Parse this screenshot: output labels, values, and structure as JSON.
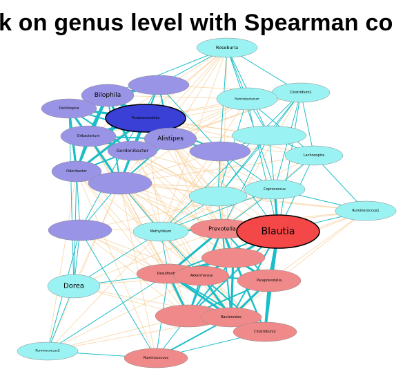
{
  "title": "k on genus level with Spearman co",
  "palette": {
    "edge_positive": "#1bbec8",
    "edge_negative": "#f7d09a",
    "cyan_node": "#9af2f2",
    "purple_node": "#9a94e6",
    "red_node": "#f08a8a",
    "hub_purple": "#3a3fd6",
    "hub_red": "#f44848"
  },
  "nodes": [
    {
      "id": "roseburia",
      "label": "Roseburia",
      "group": "cyan"
    },
    {
      "id": "clostridium1",
      "label": "Clostridium1",
      "group": "cyan"
    },
    {
      "id": "ruminobacterium",
      "label": "Ruminobacterium",
      "group": "cyan"
    },
    {
      "id": "cyan_unlab1",
      "label": "",
      "group": "cyan"
    },
    {
      "id": "lachnospira",
      "label": "Lachnospira",
      "group": "cyan"
    },
    {
      "id": "coprococcus",
      "label": "Coprococcus",
      "group": "cyan"
    },
    {
      "id": "cyan_unlab2",
      "label": "",
      "group": "cyan"
    },
    {
      "id": "ruminococcus1",
      "label": "Ruminococcus1",
      "group": "cyan"
    },
    {
      "id": "methylibium",
      "label": "Methylibium",
      "group": "cyan"
    },
    {
      "id": "dorea",
      "label": "Dorea",
      "group": "cyan"
    },
    {
      "id": "ruminococcus2",
      "label": "Ruminococcus2",
      "group": "cyan"
    },
    {
      "id": "bilophila",
      "label": "Bilophila",
      "group": "purple"
    },
    {
      "id": "purple_top",
      "label": "",
      "group": "purple"
    },
    {
      "id": "oscillospira",
      "label": "Oscillospira",
      "group": "purple"
    },
    {
      "id": "parabacteroides",
      "label": "Parabacteroides",
      "group": "hub_purple"
    },
    {
      "id": "oribacterium",
      "label": "Oribacterium",
      "group": "purple"
    },
    {
      "id": "alistipes",
      "label": "Alistipes",
      "group": "purple"
    },
    {
      "id": "gordonibacter",
      "label": "Gordonibacter",
      "group": "purple"
    },
    {
      "id": "purple_mid",
      "label": "",
      "group": "purple"
    },
    {
      "id": "odoribacter",
      "label": "Odoribacter",
      "group": "purple"
    },
    {
      "id": "purple_low",
      "label": "",
      "group": "purple"
    },
    {
      "id": "purple_left",
      "label": "",
      "group": "purple"
    },
    {
      "id": "prevotella",
      "label": "Prevotella",
      "group": "red"
    },
    {
      "id": "blautia",
      "label": "Blautia",
      "group": "hub_red"
    },
    {
      "id": "red_unlab1",
      "label": "",
      "group": "red"
    },
    {
      "id": "desulfovibrio",
      "label": "Desulfovibrio",
      "group": "red"
    },
    {
      "id": "akkermansia",
      "label": "Akkermansia",
      "group": "red"
    },
    {
      "id": "paraprevotella",
      "label": "Paraprevotella",
      "group": "red"
    },
    {
      "id": "red_unlab2",
      "label": "",
      "group": "red"
    },
    {
      "id": "bacteroides",
      "label": "Bacteroides",
      "group": "red"
    },
    {
      "id": "clostridium2",
      "label": "Clostridium2",
      "group": "red"
    },
    {
      "id": "ruminococcus",
      "label": "Ruminococcus",
      "group": "red"
    }
  ],
  "edges_positive": [
    [
      "bilophila",
      "oscillospira",
      3
    ],
    [
      "bilophila",
      "parabacteroides",
      4
    ],
    [
      "bilophila",
      "oribacterium",
      4
    ],
    [
      "bilophila",
      "alistipes",
      3
    ],
    [
      "bilophila",
      "gordonibacter",
      3
    ],
    [
      "bilophila",
      "odoribacter",
      2
    ],
    [
      "bilophila",
      "purple_top",
      2
    ],
    [
      "bilophila",
      "purple_low",
      2
    ],
    [
      "oscillospira",
      "parabacteroides",
      3
    ],
    [
      "oscillospira",
      "oribacterium",
      3
    ],
    [
      "oscillospira",
      "odoribacter",
      3
    ],
    [
      "oscillospira",
      "gordonibacter",
      2
    ],
    [
      "oscillospira",
      "alistipes",
      2
    ],
    [
      "oscillospira",
      "purple_top",
      2
    ],
    [
      "parabacteroides",
      "oribacterium",
      4
    ],
    [
      "parabacteroides",
      "alistipes",
      4
    ],
    [
      "parabacteroides",
      "gordonibacter",
      4
    ],
    [
      "parabacteroides",
      "odoribacter",
      3
    ],
    [
      "parabacteroides",
      "purple_low",
      3
    ],
    [
      "parabacteroides",
      "purple_top",
      2
    ],
    [
      "parabacteroides",
      "purple_mid",
      2
    ],
    [
      "oribacterium",
      "odoribacter",
      3
    ],
    [
      "oribacterium",
      "gordonibacter",
      3
    ],
    [
      "oribacterium",
      "purple_low",
      3
    ],
    [
      "oribacterium",
      "alistipes",
      2
    ],
    [
      "alistipes",
      "gordonibacter",
      3
    ],
    [
      "alistipes",
      "purple_mid",
      2
    ],
    [
      "alistipes",
      "purple_low",
      2
    ],
    [
      "gordonibacter",
      "purple_low",
      3
    ],
    [
      "gordonibacter",
      "odoribacter",
      2
    ],
    [
      "odoribacter",
      "purple_low",
      3
    ],
    [
      "purple_top",
      "alistipes",
      2
    ],
    [
      "purple_top",
      "purple_mid",
      1
    ],
    [
      "prevotella",
      "blautia",
      3
    ],
    [
      "prevotella",
      "red_unlab1",
      3
    ],
    [
      "prevotella",
      "desulfovibrio",
      3
    ],
    [
      "prevotella",
      "akkermansia",
      2
    ],
    [
      "prevotella",
      "paraprevotella",
      2
    ],
    [
      "prevotella",
      "bacteroides",
      2
    ],
    [
      "prevotella",
      "red_unlab2",
      2
    ],
    [
      "prevotella",
      "clostridium2",
      2
    ],
    [
      "prevotella",
      "methylibium",
      2
    ],
    [
      "blautia",
      "paraprevotella",
      3
    ],
    [
      "blautia",
      "red_unlab1",
      3
    ],
    [
      "blautia",
      "clostridium2",
      3
    ],
    [
      "blautia",
      "bacteroides",
      2
    ],
    [
      "blautia",
      "coprococcus",
      3
    ],
    [
      "blautia",
      "akkermansia",
      2
    ],
    [
      "blautia",
      "desulfovibrio",
      2
    ],
    [
      "blautia",
      "red_unlab2",
      2
    ],
    [
      "blautia",
      "purple_mid",
      1
    ],
    [
      "red_unlab1",
      "desulfovibrio",
      3
    ],
    [
      "red_unlab1",
      "akkermansia",
      3
    ],
    [
      "red_unlab1",
      "paraprevotella",
      3
    ],
    [
      "red_unlab1",
      "bacteroides",
      3
    ],
    [
      "red_unlab1",
      "clostridium2",
      2
    ],
    [
      "red_unlab1",
      "red_unlab2",
      2
    ],
    [
      "desulfovibrio",
      "akkermansia",
      4
    ],
    [
      "desulfovibrio",
      "bacteroides",
      3
    ],
    [
      "desulfovibrio",
      "red_unlab2",
      3
    ],
    [
      "desulfovibrio",
      "clostridium2",
      2
    ],
    [
      "desulfovibrio",
      "paraprevotella",
      2
    ],
    [
      "akkermansia",
      "bacteroides",
      3
    ],
    [
      "akkermansia",
      "red_unlab2",
      2
    ],
    [
      "akkermansia",
      "paraprevotella",
      2
    ],
    [
      "akkermansia",
      "clostridium2",
      2
    ],
    [
      "paraprevotella",
      "bacteroides",
      3
    ],
    [
      "paraprevotella",
      "clostridium2",
      3
    ],
    [
      "paraprevotella",
      "red_unlab2",
      2
    ],
    [
      "bacteroides",
      "clostridium2",
      3
    ],
    [
      "bacteroides",
      "red_unlab2",
      3
    ],
    [
      "bacteroides",
      "ruminococcus",
      2
    ],
    [
      "red_unlab2",
      "clostridium2",
      2
    ],
    [
      "red_unlab2",
      "ruminococcus",
      1
    ],
    [
      "clostridium2",
      "ruminococcus",
      1
    ],
    [
      "desulfovibrio",
      "ruminococcus",
      1
    ],
    [
      "methylibium",
      "desulfovibrio",
      1
    ],
    [
      "methylibium",
      "akkermansia",
      1
    ],
    [
      "roseburia",
      "clostridium1",
      1
    ],
    [
      "roseburia",
      "ruminobacterium",
      1
    ],
    [
      "roseburia",
      "purple_top",
      1
    ],
    [
      "roseburia",
      "purple_mid",
      1
    ],
    [
      "roseburia",
      "cyan_unlab1",
      1
    ],
    [
      "roseburia",
      "coprococcus",
      1
    ],
    [
      "clostridium1",
      "ruminobacterium",
      1
    ],
    [
      "clostridium1",
      "lachnospira",
      1
    ],
    [
      "clostridium1",
      "coprococcus",
      1
    ],
    [
      "clostridium1",
      "cyan_unlab1",
      1
    ],
    [
      "clostridium1",
      "cyan_unlab2",
      1
    ],
    [
      "clostridium1",
      "methylibium",
      1
    ],
    [
      "ruminobacterium",
      "cyan_unlab1",
      1
    ],
    [
      "ruminobacterium",
      "lachnospira",
      1
    ],
    [
      "ruminobacterium",
      "cyan_unlab2",
      1
    ],
    [
      "cyan_unlab1",
      "lachnospira",
      1
    ],
    [
      "cyan_unlab1",
      "coprococcus",
      1
    ],
    [
      "cyan_unlab1",
      "cyan_unlab2",
      1
    ],
    [
      "cyan_unlab1",
      "purple_mid",
      1
    ],
    [
      "cyan_unlab1",
      "prevotella",
      1
    ],
    [
      "lachnospira",
      "coprococcus",
      1
    ],
    [
      "lachnospira",
      "ruminococcus1",
      1
    ],
    [
      "coprococcus",
      "ruminococcus1",
      1
    ],
    [
      "coprococcus",
      "cyan_unlab2",
      1
    ],
    [
      "coprococcus",
      "methylibium",
      1
    ],
    [
      "coprococcus",
      "prevotella",
      1
    ],
    [
      "cyan_unlab2",
      "methylibium",
      1
    ],
    [
      "cyan_unlab2",
      "prevotella",
      1
    ],
    [
      "cyan_unlab2",
      "purple_mid",
      1
    ],
    [
      "methylibium",
      "purple_low",
      1
    ],
    [
      "methylibium",
      "dorea",
      1
    ],
    [
      "methylibium",
      "prevotella",
      1
    ],
    [
      "dorea",
      "purple_left",
      1
    ],
    [
      "dorea",
      "ruminococcus2",
      1
    ],
    [
      "dorea",
      "desulfovibrio",
      1
    ],
    [
      "ruminococcus2",
      "desulfovibrio",
      1
    ],
    [
      "ruminococcus2",
      "purple_left",
      1
    ],
    [
      "ruminococcus2",
      "ruminococcus",
      1
    ],
    [
      "ruminococcus",
      "purple_left",
      1
    ],
    [
      "purple_left",
      "odoribacter",
      1
    ],
    [
      "purple_left",
      "purple_low",
      1
    ],
    [
      "purple_mid",
      "parabacteroides",
      1
    ],
    [
      "purple_mid",
      "coprococcus",
      1
    ],
    [
      "purple_mid",
      "cyan_unlab2",
      1
    ],
    [
      "blautia",
      "lachnospira",
      1
    ],
    [
      "blautia",
      "ruminobacterium",
      1
    ],
    [
      "blautia",
      "clostridium1",
      1
    ],
    [
      "bilophila",
      "roseburia",
      1
    ],
    [
      "odoribacter",
      "dorea",
      1
    ],
    [
      "oscillospira",
      "dorea",
      1
    ],
    [
      "ruminococcus1",
      "blautia",
      1
    ],
    [
      "purple_top",
      "purple_left",
      1
    ]
  ],
  "edges_negative": [
    [
      "roseburia",
      "oribacterium"
    ],
    [
      "roseburia",
      "gordonibacter"
    ],
    [
      "roseburia",
      "odoribacter"
    ],
    [
      "roseburia",
      "alistipes"
    ],
    [
      "roseburia",
      "purple_low"
    ],
    [
      "roseburia",
      "parabacteroides"
    ],
    [
      "clostridium1",
      "parabacteroides"
    ],
    [
      "clostridium1",
      "alistipes"
    ],
    [
      "clostridium1",
      "purple_top"
    ],
    [
      "clostridium1",
      "gordonibacter"
    ],
    [
      "clostridium1",
      "oribacterium"
    ],
    [
      "ruminobacterium",
      "parabacteroides"
    ],
    [
      "ruminobacterium",
      "alistipes"
    ],
    [
      "ruminobacterium",
      "bilophila"
    ],
    [
      "ruminobacterium",
      "purple_low"
    ],
    [
      "ruminobacterium",
      "gordonibacter"
    ],
    [
      "cyan_unlab1",
      "alistipes"
    ],
    [
      "cyan_unlab1",
      "parabacteroides"
    ],
    [
      "cyan_unlab1",
      "purple_low"
    ],
    [
      "cyan_unlab1",
      "oscillospira"
    ],
    [
      "lachnospira",
      "alistipes"
    ],
    [
      "lachnospira",
      "purple_low"
    ],
    [
      "lachnospira",
      "parabacteroides"
    ],
    [
      "coprococcus",
      "purple_low"
    ],
    [
      "coprococcus",
      "alistipes"
    ],
    [
      "coprococcus",
      "gordonibacter"
    ],
    [
      "coprococcus",
      "purple_left"
    ],
    [
      "ruminococcus1",
      "purple_low"
    ],
    [
      "ruminococcus1",
      "cyan_unlab2"
    ],
    [
      "ruminococcus1",
      "methylibium"
    ],
    [
      "ruminococcus1",
      "prevotella"
    ],
    [
      "ruminococcus1",
      "red_unlab1"
    ],
    [
      "cyan_unlab2",
      "odoribacter"
    ],
    [
      "cyan_unlab2",
      "oribacterium"
    ],
    [
      "cyan_unlab2",
      "gordonibacter"
    ],
    [
      "purple_low",
      "prevotella"
    ],
    [
      "purple_low",
      "desulfovibrio"
    ],
    [
      "purple_low",
      "akkermansia"
    ],
    [
      "purple_low",
      "bacteroides"
    ],
    [
      "purple_low",
      "red_unlab2"
    ],
    [
      "purple_low",
      "clostridium2"
    ],
    [
      "purple_low",
      "ruminococcus"
    ],
    [
      "purple_low",
      "blautia"
    ],
    [
      "purple_low",
      "red_unlab1"
    ],
    [
      "purple_low",
      "paraprevotella"
    ],
    [
      "purple_low",
      "dorea"
    ],
    [
      "purple_low",
      "ruminococcus2"
    ],
    [
      "odoribacter",
      "prevotella"
    ],
    [
      "odoribacter",
      "desulfovibrio"
    ],
    [
      "odoribacter",
      "akkermansia"
    ],
    [
      "odoribacter",
      "red_unlab2"
    ],
    [
      "odoribacter",
      "ruminococcus"
    ],
    [
      "odoribacter",
      "ruminococcus2"
    ],
    [
      "gordonibacter",
      "prevotella"
    ],
    [
      "gordonibacter",
      "akkermansia"
    ],
    [
      "gordonibacter",
      "red_unlab1"
    ],
    [
      "gordonibacter",
      "bacteroides"
    ],
    [
      "gordonibacter",
      "blautia"
    ],
    [
      "gordonibacter",
      "methylibium"
    ],
    [
      "alistipes",
      "prevotella"
    ],
    [
      "alistipes",
      "blautia"
    ],
    [
      "alistipes",
      "red_unlab1"
    ],
    [
      "alistipes",
      "paraprevotella"
    ],
    [
      "alistipes",
      "bacteroides"
    ],
    [
      "alistipes",
      "cyan_unlab2"
    ],
    [
      "oribacterium",
      "methylibium"
    ],
    [
      "oribacterium",
      "desulfovibrio"
    ],
    [
      "oribacterium",
      "red_unlab2"
    ],
    [
      "parabacteroides",
      "methylibium"
    ],
    [
      "parabacteroides",
      "prevotella"
    ],
    [
      "parabacteroides",
      "cyan_unlab2"
    ],
    [
      "purple_left",
      "prevotella"
    ],
    [
      "purple_left",
      "akkermansia"
    ],
    [
      "purple_left",
      "desulfovibrio"
    ],
    [
      "purple_left",
      "red_unlab2"
    ],
    [
      "purple_left",
      "clostridium2"
    ],
    [
      "dorea",
      "prevotella"
    ],
    [
      "dorea",
      "akkermansia"
    ],
    [
      "dorea",
      "red_unlab2"
    ],
    [
      "dorea",
      "bacteroides"
    ],
    [
      "ruminococcus2",
      "akkermansia"
    ],
    [
      "ruminococcus2",
      "red_unlab2"
    ],
    [
      "ruminococcus2",
      "bacteroides"
    ],
    [
      "ruminococcus2",
      "methylibium"
    ],
    [
      "methylibium",
      "clostridium2"
    ],
    [
      "methylibium",
      "bacteroides"
    ],
    [
      "methylibium",
      "red_unlab2"
    ],
    [
      "clostridium1",
      "prevotella"
    ],
    [
      "roseburia",
      "prevotella"
    ],
    [
      "roseburia",
      "methylibium"
    ],
    [
      "lachnospira",
      "methylibium"
    ],
    [
      "lachnospira",
      "prevotella"
    ],
    [
      "ruminococcus1",
      "paraprevotella"
    ],
    [
      "ruminococcus1",
      "bacteroides"
    ],
    [
      "ruminococcus1",
      "akkermansia"
    ],
    [
      "ruminobacterium",
      "methylibium"
    ],
    [
      "cyan_unlab1",
      "methylibium"
    ],
    [
      "purple_mid",
      "methylibium"
    ],
    [
      "purple_mid",
      "prevotella"
    ],
    [
      "purple_mid",
      "red_unlab1"
    ]
  ]
}
